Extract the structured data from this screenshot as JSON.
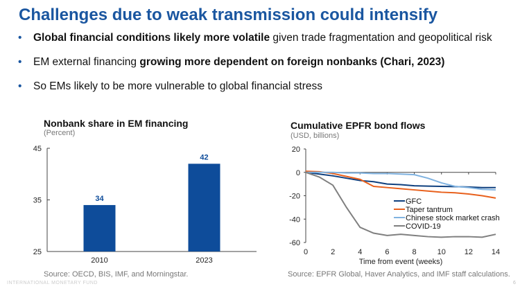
{
  "title": "Challenges due to weak transmission could intensify",
  "bullets": [
    [
      {
        "b": true,
        "t": "Global financial conditions likely more volatile"
      },
      {
        "b": false,
        "t": " given trade fragmentation and geopolitical risk"
      }
    ],
    [
      {
        "b": false,
        "t": "EM external financing "
      },
      {
        "b": true,
        "t": "growing more dependent on foreign nonbanks (Chari, 2023)"
      }
    ],
    [
      {
        "b": false,
        "t": "So EMs likely to be more vulnerable to global financial stress"
      }
    ]
  ],
  "bullet_char": "•",
  "footer": {
    "org": "INTERNATIONAL MONETARY FUND",
    "page": "6"
  },
  "chart_data": [
    {
      "type": "bar",
      "title": "Nonbank share in EM financing",
      "subtitle": "(Percent)",
      "categories": [
        "2010",
        "2023"
      ],
      "values": [
        34,
        42
      ],
      "ylim": [
        25,
        45
      ],
      "yticks": [
        25,
        35,
        45
      ],
      "color": "#0e4c9a",
      "source": "Source: OECD, BIS, IMF, and Morningstar."
    },
    {
      "type": "line",
      "title": "Cumulative EPFR bond flows",
      "subtitle": "(USD, billions)",
      "xlabel": "Time from event (weeks)",
      "xlim": [
        0,
        14
      ],
      "ylim": [
        -60,
        20
      ],
      "xticks": [
        0,
        2,
        4,
        6,
        8,
        10,
        12,
        14
      ],
      "yticks": [
        20,
        0,
        -20,
        -40,
        -60
      ],
      "legend": "center-right",
      "source": "Source: EPFR Global, Haver Analytics, and IMF staff calculations.",
      "x": [
        0,
        1,
        2,
        3,
        4,
        5,
        6,
        7,
        8,
        9,
        10,
        11,
        12,
        13,
        14
      ],
      "series": [
        {
          "name": "GFC",
          "color": "#0e3f7e",
          "values": [
            0,
            -1.5,
            -3,
            -5,
            -7,
            -8,
            -10,
            -10.5,
            -11.5,
            -11.8,
            -12,
            -12.2,
            -12.5,
            -13,
            -13
          ]
        },
        {
          "name": "Taper tantrum",
          "color": "#e8601c",
          "values": [
            1,
            0.5,
            -1,
            -3.5,
            -6,
            -12,
            -13,
            -14,
            -15,
            -16,
            -17,
            -17.5,
            -18.5,
            -20,
            -22
          ]
        },
        {
          "name": "Chinese stock market crash",
          "color": "#7fb2e0",
          "values": [
            0,
            0,
            0,
            -0.5,
            -0.5,
            -1,
            -1,
            -1.5,
            -2,
            -5,
            -9,
            -12,
            -13,
            -14.5,
            -15
          ]
        },
        {
          "name": "COVID-19",
          "color": "#7f7f7f",
          "values": [
            0,
            -4,
            -11,
            -30,
            -47,
            -52,
            -54,
            -53,
            -54,
            -55,
            -55.5,
            -55,
            -55,
            -55.5,
            -53
          ]
        }
      ]
    }
  ]
}
